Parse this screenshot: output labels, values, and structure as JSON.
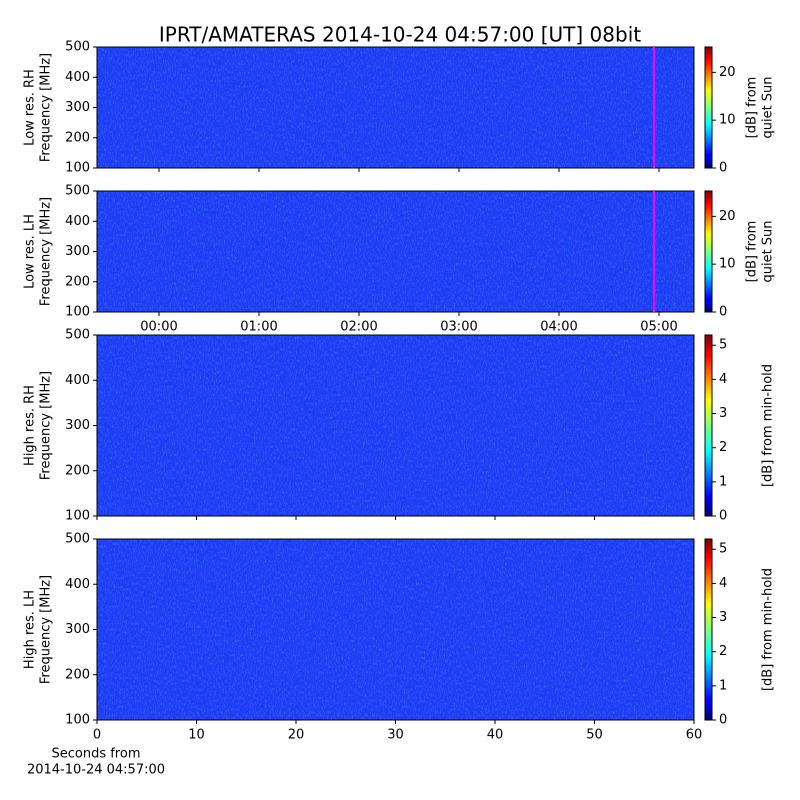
{
  "chart_data": {
    "type": "spectrogram",
    "title": "IPRT/AMATERAS 2014-10-24 04:57:00 [UT]   08bit",
    "time_axis": {
      "xlim": [
        -0.62,
        5.35
      ],
      "xticks": [
        {
          "value": 0,
          "label": "00:00"
        },
        {
          "value": 1,
          "label": "01:00"
        },
        {
          "value": 2,
          "label": "02:00"
        },
        {
          "value": 3,
          "label": "03:00"
        },
        {
          "value": 4,
          "label": "04:00"
        },
        {
          "value": 5,
          "label": "05:00"
        }
      ],
      "marker": 4.95,
      "marker_color": "#ff00ff"
    },
    "seconds_axis": {
      "xlim": [
        0,
        60
      ],
      "xticks": [
        0,
        10,
        20,
        30,
        40,
        50,
        60
      ],
      "xlabel": [
        "Seconds from",
        "2014-10-24 04:57:00"
      ]
    },
    "panels": [
      {
        "ylabel": [
          "Low res. RH",
          "Frequency [MHz]"
        ],
        "ylim": [
          100,
          500
        ],
        "yticks": [
          100,
          200,
          300,
          400,
          500
        ],
        "colorbar_label": [
          "[dB] from",
          "quiet Sun"
        ],
        "clim": [
          0,
          25.3
        ],
        "cticks": [
          0,
          10,
          20
        ],
        "xaxis": "time",
        "xticklabels": false
      },
      {
        "ylabel": [
          "Low res. LH",
          "Frequency [MHz]"
        ],
        "ylim": [
          100,
          500
        ],
        "yticks": [
          100,
          200,
          300,
          400,
          500
        ],
        "colorbar_label": [
          "[dB] from",
          "quiet Sun"
        ],
        "clim": [
          0,
          25.3
        ],
        "cticks": [
          0,
          10,
          20
        ],
        "xaxis": "time",
        "xticklabels": true
      },
      {
        "ylabel": [
          "High res. RH",
          "Frequency [MHz]"
        ],
        "ylim": [
          100,
          500
        ],
        "yticks": [
          100,
          200,
          300,
          400,
          500
        ],
        "colorbar_label": [
          "[dB] from min-hold"
        ],
        "clim": [
          0,
          5.3
        ],
        "cticks": [
          0,
          1,
          2,
          3,
          4,
          5
        ],
        "xaxis": "seconds",
        "xticklabels": false
      },
      {
        "ylabel": [
          "High res. LH",
          "Frequency [MHz]"
        ],
        "ylim": [
          100,
          500
        ],
        "yticks": [
          100,
          200,
          300,
          400,
          500
        ],
        "colorbar_label": [
          "[dB] from min-hold"
        ],
        "clim": [
          0,
          5.3
        ],
        "cticks": [
          0,
          1,
          2,
          3,
          4,
          5
        ],
        "xaxis": "seconds",
        "xticklabels": true
      }
    ]
  }
}
